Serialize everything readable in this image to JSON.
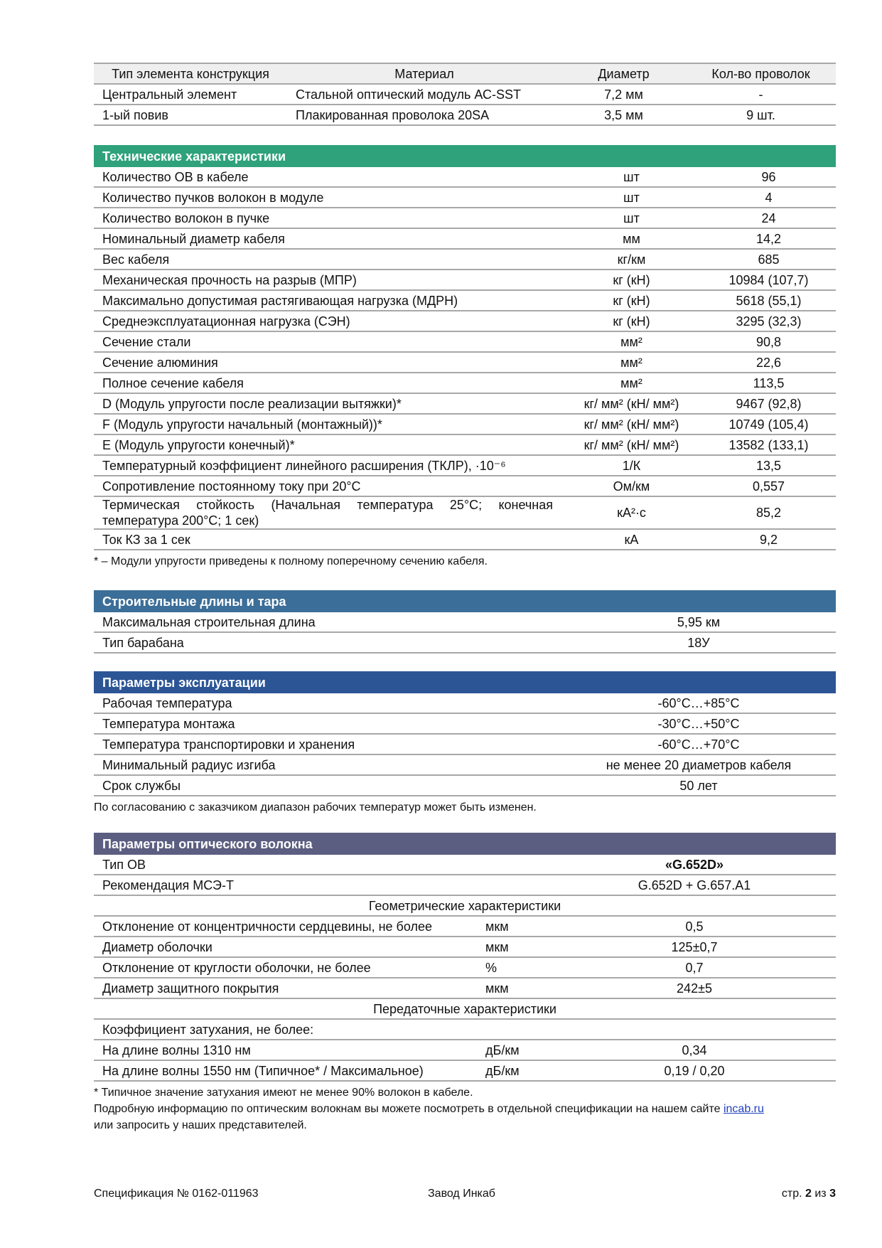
{
  "construction": {
    "headers": [
      "Тип элемента конструкция",
      "Материал",
      "Диаметр",
      "Кол-во проволок"
    ],
    "rows": [
      [
        "Центральный элемент",
        "Стальной оптический модуль АС-SST",
        "7,2 мм",
        "-"
      ],
      [
        "1-ый повив",
        "Плакированная проволока 20SA",
        "3,5 мм",
        "9 шт."
      ]
    ]
  },
  "technical": {
    "title": "Технические характеристики",
    "rows": [
      [
        "Количество ОВ в кабеле",
        "шт",
        "96"
      ],
      [
        "Количество пучков волокон в модуле",
        "шт",
        "4"
      ],
      [
        "Количество волокон в пучке",
        "шт",
        "24"
      ],
      [
        "Номинальный диаметр кабеля",
        "мм",
        "14,2"
      ],
      [
        "Вес кабеля",
        "кг/км",
        "685"
      ],
      [
        "Механическая прочность на разрыв (МПР)",
        "кг (кН)",
        "10984 (107,7)"
      ],
      [
        "Максимально допустимая растягивающая нагрузка (МДРН)",
        "кг (кН)",
        "5618 (55,1)"
      ],
      [
        "Среднеэксплуатационная нагрузка (СЭН)",
        "кг (кН)",
        "3295 (32,3)"
      ],
      [
        "Сечение стали",
        "мм²",
        "90,8"
      ],
      [
        "Сечение алюминия",
        "мм²",
        "22,6"
      ],
      [
        "Полное сечение кабеля",
        "мм²",
        "113,5"
      ],
      [
        "D (Модуль упругости после реализации вытяжки)*",
        "кг/ мм² (кН/ мм²)",
        "9467 (92,8)"
      ],
      [
        "F (Модуль упругости начальный (монтажный))*",
        "кг/ мм² (кН/ мм²)",
        "10749 (105,4)"
      ],
      [
        "E (Модуль упругости конечный)*",
        "кг/ мм² (кН/ мм²)",
        "13582 (133,1)"
      ],
      [
        "Температурный коэффициент линейного расширения (ТКЛР), ·10⁻⁶",
        "1/К",
        "13,5"
      ],
      [
        "Сопротивление постоянному току при 20°С",
        "Ом/км",
        "0,557"
      ],
      [
        "Термическая стойкость (Начальная температура 25°С; конечная температура 200°С; 1 сек)",
        "кА²·с",
        "85,2"
      ],
      [
        "Ток КЗ за 1 сек",
        "кА",
        "9,2"
      ]
    ],
    "note": "*  – Модули упругости приведены к полному поперечному сечению кабеля."
  },
  "lengths": {
    "title": "Строительные длины и тара",
    "rows": [
      [
        "Максимальная строительная длина",
        "5,95 км"
      ],
      [
        "Тип барабана",
        "18У"
      ]
    ]
  },
  "operation": {
    "title": "Параметры эксплуатации",
    "rows": [
      [
        "Рабочая температура",
        "-60°С…+85°С"
      ],
      [
        "Температура монтажа",
        "-30°С…+50°С"
      ],
      [
        "Температура транспортировки и хранения",
        "-60°С…+70°С"
      ],
      [
        "Минимальный радиус изгиба",
        "не менее 20 диаметров кабеля"
      ],
      [
        "Срок службы",
        "50 лет"
      ]
    ],
    "note": "По согласованию с заказчиком диапазон рабочих температур может быть изменен."
  },
  "fiber": {
    "title": "Параметры оптического волокна",
    "rows": [
      [
        "Тип ОВ",
        "«G.652D»"
      ],
      [
        "Рекомендация МСЭ-Т",
        "G.652D + G.657.A1"
      ]
    ],
    "geometry_title": "Геометрические характеристики",
    "geometry_rows": [
      [
        "Отклонение от концентричности сердцевины, не более",
        "мкм",
        "0,5"
      ],
      [
        "Диаметр оболочки",
        "мкм",
        "125±0,7"
      ],
      [
        "Отклонение от круглости оболочки, не более",
        "%",
        "0,7"
      ],
      [
        "Диаметр защитного покрытия",
        "мкм",
        "242±5"
      ]
    ],
    "transmission_title": "Передаточные характеристики",
    "attenuation_label": "Коэффициент затухания, не более:",
    "transmission_rows": [
      [
        "На длине волны 1310 нм",
        "дБ/км",
        "0,34"
      ],
      [
        "На длине волны 1550 нм (Типичное* / Максимальное)",
        "дБ/км",
        "0,19 / 0,20"
      ]
    ],
    "notes": [
      "* Типичное значение затухания имеют не менее 90% волокон в кабеле.",
      "Подробную информацию по оптическим волокнам вы можете посмотреть в отдельной спецификации на нашем сайте"
    ],
    "link": "incab.ru",
    "notes_end": "или запросить у наших представителей."
  },
  "footer": {
    "left": "Спецификация № 0162-011963",
    "center": "Завод Инкаб",
    "page_prefix": "стр.",
    "page": "2",
    "page_of": "из",
    "pages": "3"
  }
}
